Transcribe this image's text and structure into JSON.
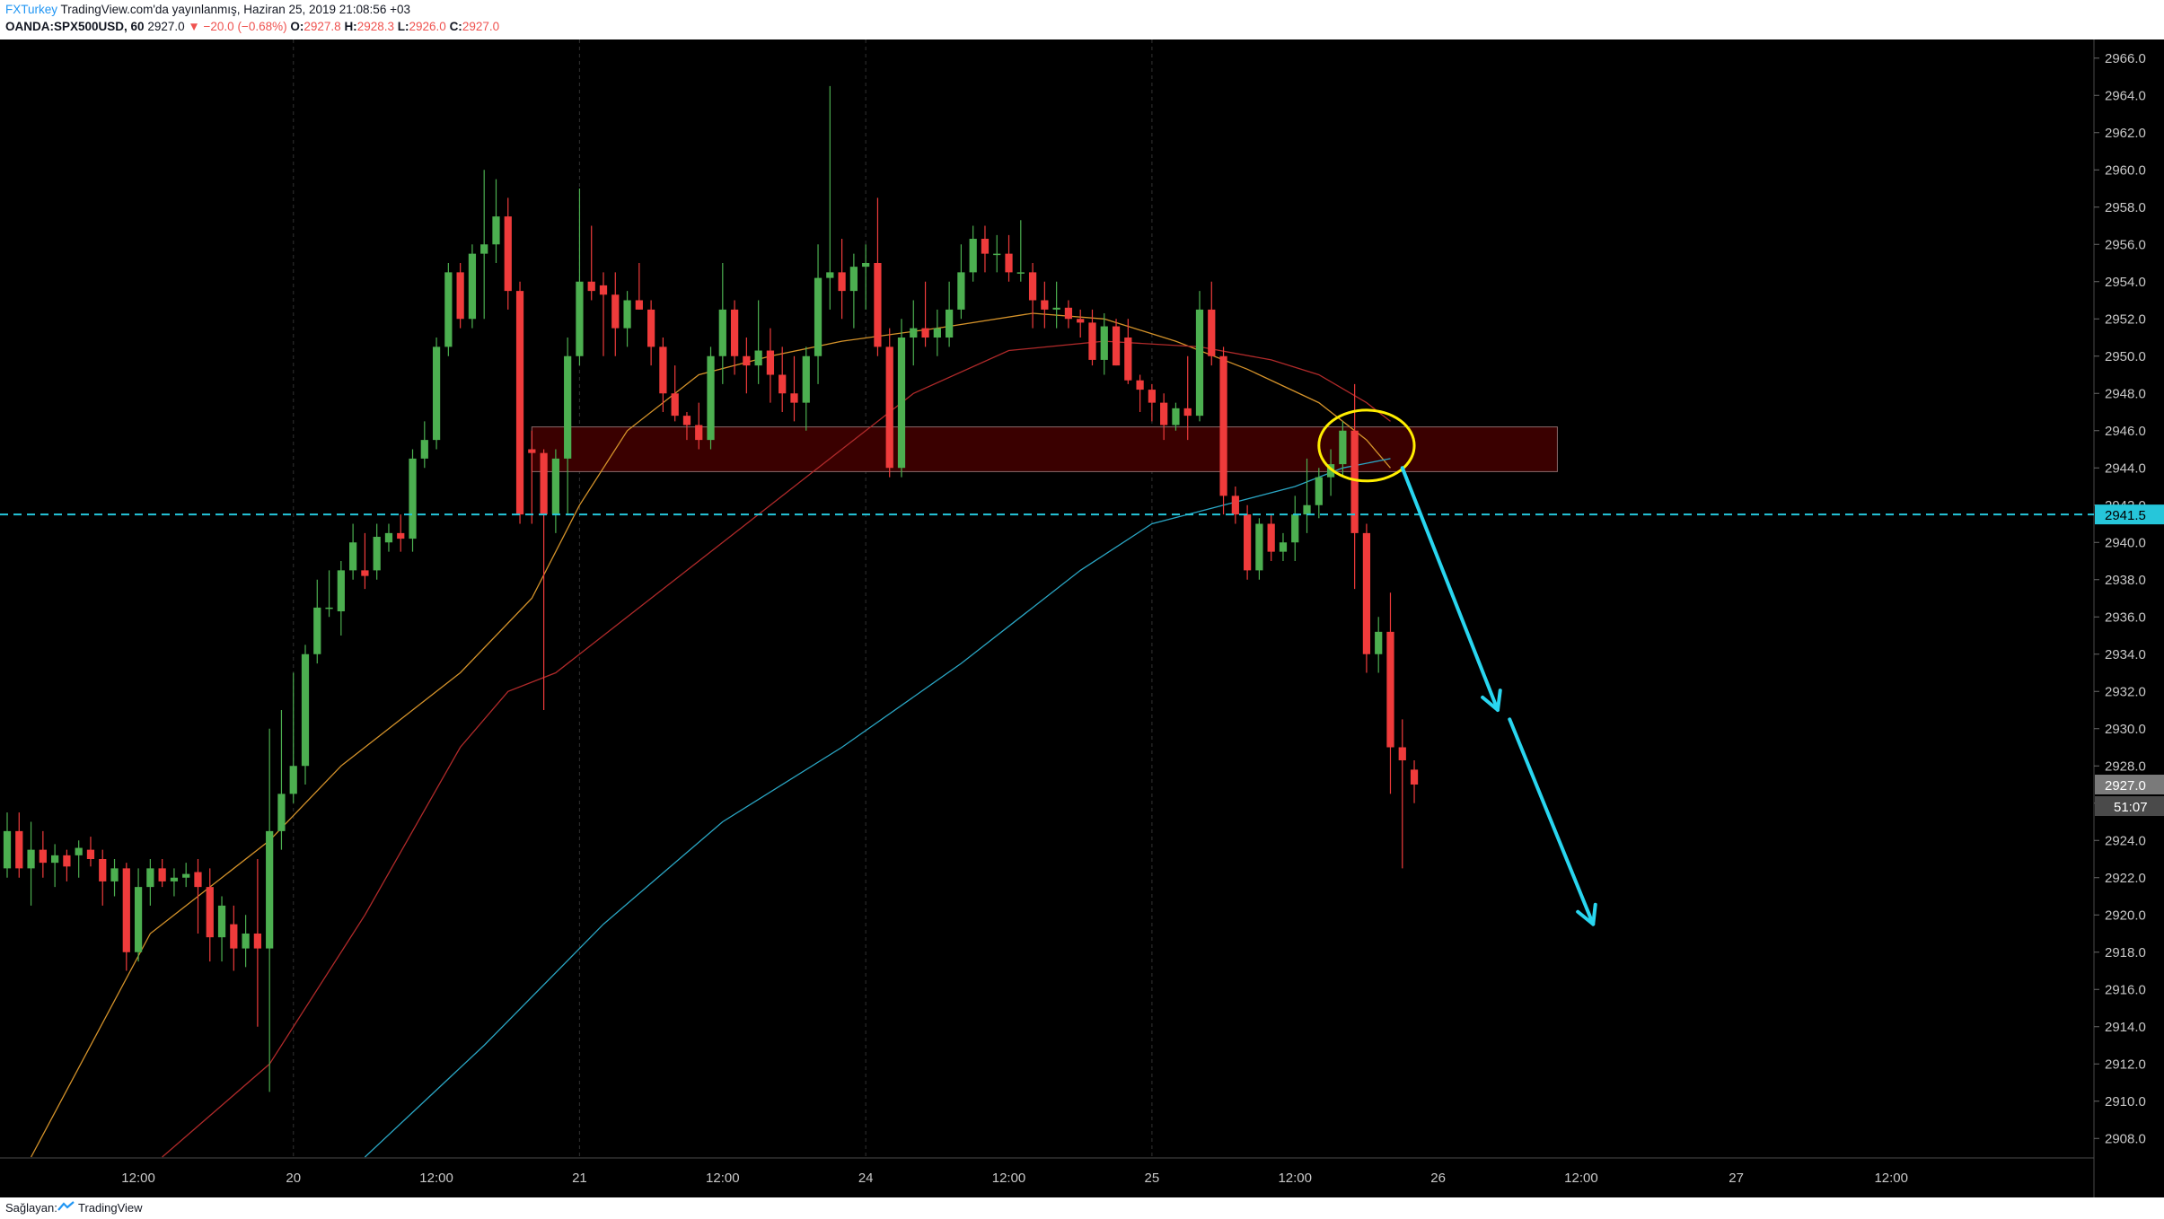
{
  "header": {
    "author": "FXTurkey",
    "published": "TradingView.com'da yayınlanmış, Haziran 25, 2019 21:08:56 +03",
    "symbol": "OANDA:SPX500USD, 60",
    "last": "2927.0",
    "change": "−20.0 (−0.68%)",
    "o_label": "O:",
    "o_value": "2927.8",
    "h_label": "H:",
    "h_value": "2928.3",
    "l_label": "L:",
    "l_value": "2926.0",
    "c_label": "C:",
    "c_value": "2927.0"
  },
  "footer": {
    "provided_by": "Sağlayan:",
    "brand": "TradingView"
  },
  "colors": {
    "background": "#000000",
    "up": "#4caf50",
    "down": "#ef3b3b",
    "ma_fast": "#d4922a",
    "ma_mid": "#b02a2a",
    "ma_slow": "#2aa6c4",
    "zone_fill": "#3a0000",
    "annotation_arrow": "#29d6f0",
    "annotation_ellipse": "#ffee00",
    "level_line": "#26c6da"
  },
  "chart_data": {
    "type": "candlestick",
    "symbol": "OANDA:SPX500USD",
    "interval": "60",
    "ylim": [
      2907,
      2967
    ],
    "y_ticks": [
      2908,
      2910,
      2912,
      2914,
      2916,
      2918,
      2920,
      2922,
      2924,
      2926,
      2928,
      2930,
      2932,
      2934,
      2936,
      2938,
      2940,
      2942,
      2944,
      2946,
      2948,
      2950,
      2952,
      2954,
      2956,
      2958,
      2960,
      2962,
      2964,
      2966
    ],
    "y_tick_labels": [
      "2908.0",
      "2910.0",
      "2912.0",
      "2914.0",
      "2916.0",
      "2918.0",
      "2920.0",
      "2922.0",
      "2924.0",
      "2926.0",
      "2928.0",
      "2930.0",
      "2932.0",
      "2934.0",
      "2936.0",
      "2938.0",
      "2940.0",
      "2942.0",
      "2944.0",
      "2946.0",
      "2948.0",
      "2950.0",
      "2952.0",
      "2954.0",
      "2956.0",
      "2958.0",
      "2960.0",
      "2962.0",
      "2964.0",
      "2966.0"
    ],
    "x_range": [
      0,
      175
    ],
    "x_ticks": [
      {
        "t": 11,
        "label": "12:00"
      },
      {
        "t": 24,
        "label": "20"
      },
      {
        "t": 36,
        "label": "12:00"
      },
      {
        "t": 48,
        "label": "21"
      },
      {
        "t": 60,
        "label": "12:00"
      },
      {
        "t": 72,
        "label": "24"
      },
      {
        "t": 84,
        "label": "12:00"
      },
      {
        "t": 96,
        "label": "25"
      },
      {
        "t": 108,
        "label": "12:00"
      },
      {
        "t": 120,
        "label": "26"
      },
      {
        "t": 132,
        "label": "12:00"
      },
      {
        "t": 145,
        "label": "27"
      },
      {
        "t": 158,
        "label": "12:00"
      }
    ],
    "candles": [
      {
        "t": 0,
        "o": 2922.5,
        "h": 2925.5,
        "l": 2922,
        "c": 2924.5
      },
      {
        "t": 1,
        "o": 2924.5,
        "h": 2925.5,
        "l": 2922,
        "c": 2922.5
      },
      {
        "t": 2,
        "o": 2922.5,
        "h": 2925,
        "l": 2920.5,
        "c": 2923.5
      },
      {
        "t": 3,
        "o": 2923.5,
        "h": 2924.5,
        "l": 2922,
        "c": 2922.8
      },
      {
        "t": 4,
        "o": 2922.8,
        "h": 2923.8,
        "l": 2921.5,
        "c": 2923.2
      },
      {
        "t": 5,
        "o": 2923.2,
        "h": 2923.5,
        "l": 2921.8,
        "c": 2922.6
      },
      {
        "t": 6,
        "o": 2923.2,
        "h": 2924,
        "l": 2922,
        "c": 2923.6
      },
      {
        "t": 7,
        "o": 2923.5,
        "h": 2924.2,
        "l": 2922.6,
        "c": 2923
      },
      {
        "t": 8,
        "o": 2923,
        "h": 2923.5,
        "l": 2920.5,
        "c": 2921.8
      },
      {
        "t": 9,
        "o": 2921.8,
        "h": 2923,
        "l": 2921,
        "c": 2922.5
      },
      {
        "t": 10,
        "o": 2922.5,
        "h": 2922.8,
        "l": 2917,
        "c": 2918
      },
      {
        "t": 11,
        "o": 2918,
        "h": 2922.5,
        "l": 2917.5,
        "c": 2921.5
      },
      {
        "t": 12,
        "o": 2921.5,
        "h": 2923,
        "l": 2920.5,
        "c": 2922.5
      },
      {
        "t": 13,
        "o": 2922.5,
        "h": 2923,
        "l": 2921.5,
        "c": 2921.8
      },
      {
        "t": 14,
        "o": 2921.8,
        "h": 2922.5,
        "l": 2921,
        "c": 2922
      },
      {
        "t": 15,
        "o": 2922,
        "h": 2922.8,
        "l": 2921.5,
        "c": 2922.2
      },
      {
        "t": 16,
        "o": 2922.3,
        "h": 2923,
        "l": 2919,
        "c": 2921.5
      },
      {
        "t": 17,
        "o": 2921.5,
        "h": 2922.5,
        "l": 2917.5,
        "c": 2918.8
      },
      {
        "t": 18,
        "o": 2918.8,
        "h": 2921,
        "l": 2917.5,
        "c": 2920.5
      },
      {
        "t": 19,
        "o": 2919.5,
        "h": 2920.5,
        "l": 2917,
        "c": 2918.2
      },
      {
        "t": 20,
        "o": 2918.2,
        "h": 2920,
        "l": 2917.2,
        "c": 2919
      },
      {
        "t": 21,
        "o": 2919,
        "h": 2923,
        "l": 2914,
        "c": 2918.2
      },
      {
        "t": 22,
        "o": 2918.2,
        "h": 2930,
        "l": 2910.5,
        "c": 2924.5
      },
      {
        "t": 23,
        "o": 2924.5,
        "h": 2931,
        "l": 2923.5,
        "c": 2926.5
      },
      {
        "t": 24,
        "o": 2926.5,
        "h": 2933,
        "l": 2926,
        "c": 2928
      },
      {
        "t": 25,
        "o": 2928,
        "h": 2934.5,
        "l": 2927,
        "c": 2934
      },
      {
        "t": 26,
        "o": 2934,
        "h": 2938,
        "l": 2933.5,
        "c": 2936.5
      },
      {
        "t": 27,
        "o": 2936.5,
        "h": 2938.5,
        "l": 2936,
        "c": 2936.5
      },
      {
        "t": 28,
        "o": 2936.3,
        "h": 2939,
        "l": 2935,
        "c": 2938.5
      },
      {
        "t": 29,
        "o": 2938.5,
        "h": 2941,
        "l": 2938,
        "c": 2940
      },
      {
        "t": 30,
        "o": 2938.5,
        "h": 2940.5,
        "l": 2937.5,
        "c": 2938.2
      },
      {
        "t": 31,
        "o": 2938.5,
        "h": 2941,
        "l": 2938,
        "c": 2940.3
      },
      {
        "t": 32,
        "o": 2940,
        "h": 2941,
        "l": 2939.5,
        "c": 2940.5
      },
      {
        "t": 33,
        "o": 2940.5,
        "h": 2941.5,
        "l": 2939.5,
        "c": 2940.2
      },
      {
        "t": 34,
        "o": 2940.2,
        "h": 2945,
        "l": 2939.5,
        "c": 2944.5
      },
      {
        "t": 35,
        "o": 2944.5,
        "h": 2946.5,
        "l": 2944,
        "c": 2945.5
      },
      {
        "t": 36,
        "o": 2945.5,
        "h": 2951,
        "l": 2945,
        "c": 2950.5
      },
      {
        "t": 37,
        "o": 2950.5,
        "h": 2955,
        "l": 2950,
        "c": 2954.5
      },
      {
        "t": 38,
        "o": 2954.5,
        "h": 2955,
        "l": 2951.5,
        "c": 2952
      },
      {
        "t": 39,
        "o": 2952,
        "h": 2956,
        "l": 2951.5,
        "c": 2955.5
      },
      {
        "t": 40,
        "o": 2955.5,
        "h": 2960,
        "l": 2952,
        "c": 2956
      },
      {
        "t": 41,
        "o": 2956,
        "h": 2959.5,
        "l": 2955,
        "c": 2957.5
      },
      {
        "t": 42,
        "o": 2957.5,
        "h": 2958.5,
        "l": 2952.5,
        "c": 2953.5
      },
      {
        "t": 43,
        "o": 2953.5,
        "h": 2954,
        "l": 2941,
        "c": 2941.5
      },
      {
        "t": 44,
        "o": 2945,
        "h": 2946,
        "l": 2941,
        "c": 2944.8
      },
      {
        "t": 45,
        "o": 2944.8,
        "h": 2945,
        "l": 2931,
        "c": 2941.5
      },
      {
        "t": 46,
        "o": 2941.5,
        "h": 2945,
        "l": 2940.5,
        "c": 2944.5
      },
      {
        "t": 47,
        "o": 2944.5,
        "h": 2951,
        "l": 2941.5,
        "c": 2950
      },
      {
        "t": 48,
        "o": 2950,
        "h": 2959,
        "l": 2949.5,
        "c": 2954
      },
      {
        "t": 49,
        "o": 2954,
        "h": 2957,
        "l": 2953,
        "c": 2953.5
      },
      {
        "t": 50,
        "o": 2953.8,
        "h": 2954.5,
        "l": 2950,
        "c": 2953.3
      },
      {
        "t": 51,
        "o": 2953.3,
        "h": 2954.5,
        "l": 2950,
        "c": 2951.5
      },
      {
        "t": 52,
        "o": 2951.5,
        "h": 2953.5,
        "l": 2950.5,
        "c": 2953
      },
      {
        "t": 53,
        "o": 2953,
        "h": 2955,
        "l": 2952.5,
        "c": 2952.5
      },
      {
        "t": 54,
        "o": 2952.5,
        "h": 2953,
        "l": 2949.5,
        "c": 2950.5
      },
      {
        "t": 55,
        "o": 2950.5,
        "h": 2951,
        "l": 2947,
        "c": 2948
      },
      {
        "t": 56,
        "o": 2948,
        "h": 2949.5,
        "l": 2946.5,
        "c": 2946.8
      },
      {
        "t": 57,
        "o": 2946.8,
        "h": 2947,
        "l": 2945.5,
        "c": 2946.3
      },
      {
        "t": 58,
        "o": 2946.3,
        "h": 2947.5,
        "l": 2945,
        "c": 2945.5
      },
      {
        "t": 59,
        "o": 2945.5,
        "h": 2950.5,
        "l": 2945,
        "c": 2950
      },
      {
        "t": 60,
        "o": 2950,
        "h": 2955,
        "l": 2948.5,
        "c": 2952.5
      },
      {
        "t": 61,
        "o": 2952.5,
        "h": 2953,
        "l": 2949,
        "c": 2950
      },
      {
        "t": 62,
        "o": 2950,
        "h": 2951,
        "l": 2948,
        "c": 2949.5
      },
      {
        "t": 63,
        "o": 2949.5,
        "h": 2953,
        "l": 2948.5,
        "c": 2950.3
      },
      {
        "t": 64,
        "o": 2950.3,
        "h": 2951.5,
        "l": 2947.5,
        "c": 2949
      },
      {
        "t": 65,
        "o": 2949,
        "h": 2950.5,
        "l": 2947,
        "c": 2948
      },
      {
        "t": 66,
        "o": 2948,
        "h": 2950,
        "l": 2946.5,
        "c": 2947.5
      },
      {
        "t": 67,
        "o": 2947.5,
        "h": 2950.5,
        "l": 2946,
        "c": 2950
      },
      {
        "t": 68,
        "o": 2950,
        "h": 2956,
        "l": 2948.5,
        "c": 2954.2
      },
      {
        "t": 69,
        "o": 2954.2,
        "h": 2964.5,
        "l": 2952.5,
        "c": 2954.5
      },
      {
        "t": 70,
        "o": 2954.5,
        "h": 2956.3,
        "l": 2952,
        "c": 2953.5
      },
      {
        "t": 71,
        "o": 2953.5,
        "h": 2955.5,
        "l": 2951.5,
        "c": 2954.8
      },
      {
        "t": 72,
        "o": 2954.8,
        "h": 2956,
        "l": 2952.5,
        "c": 2955
      },
      {
        "t": 73,
        "o": 2955,
        "h": 2958.5,
        "l": 2950,
        "c": 2950.5
      },
      {
        "t": 74,
        "o": 2950.5,
        "h": 2951.5,
        "l": 2943.5,
        "c": 2944
      },
      {
        "t": 75,
        "o": 2944,
        "h": 2952,
        "l": 2943.5,
        "c": 2951
      },
      {
        "t": 76,
        "o": 2951,
        "h": 2953,
        "l": 2949.5,
        "c": 2951.5
      },
      {
        "t": 77,
        "o": 2951.5,
        "h": 2954,
        "l": 2950.5,
        "c": 2951
      },
      {
        "t": 78,
        "o": 2951,
        "h": 2952.5,
        "l": 2950,
        "c": 2951.5
      },
      {
        "t": 79,
        "o": 2951,
        "h": 2954,
        "l": 2950.5,
        "c": 2952.5
      },
      {
        "t": 80,
        "o": 2952.5,
        "h": 2956,
        "l": 2952,
        "c": 2954.5
      },
      {
        "t": 81,
        "o": 2954.5,
        "h": 2957,
        "l": 2954,
        "c": 2956.3
      },
      {
        "t": 82,
        "o": 2956.3,
        "h": 2957,
        "l": 2954.5,
        "c": 2955.5
      },
      {
        "t": 83,
        "o": 2955.5,
        "h": 2956.5,
        "l": 2954.5,
        "c": 2955.5
      },
      {
        "t": 84,
        "o": 2955.5,
        "h": 2956.5,
        "l": 2954,
        "c": 2954.5
      },
      {
        "t": 85,
        "o": 2954.5,
        "h": 2957.3,
        "l": 2954,
        "c": 2954.5
      },
      {
        "t": 86,
        "o": 2954.5,
        "h": 2955,
        "l": 2951.5,
        "c": 2953
      },
      {
        "t": 87,
        "o": 2953,
        "h": 2954,
        "l": 2951.5,
        "c": 2952.5
      },
      {
        "t": 88,
        "o": 2952.5,
        "h": 2954,
        "l": 2951.5,
        "c": 2952.6
      },
      {
        "t": 89,
        "o": 2952.6,
        "h": 2953,
        "l": 2951.5,
        "c": 2952
      },
      {
        "t": 90,
        "o": 2952,
        "h": 2952.5,
        "l": 2951,
        "c": 2951.8
      },
      {
        "t": 91,
        "o": 2951.8,
        "h": 2952.5,
        "l": 2949.5,
        "c": 2949.8
      },
      {
        "t": 92,
        "o": 2949.8,
        "h": 2952.3,
        "l": 2949,
        "c": 2951.6
      },
      {
        "t": 93,
        "o": 2951.6,
        "h": 2952,
        "l": 2949.5,
        "c": 2949.5
      },
      {
        "t": 94,
        "o": 2951,
        "h": 2952,
        "l": 2948.5,
        "c": 2948.7
      },
      {
        "t": 95,
        "o": 2948.7,
        "h": 2949,
        "l": 2947,
        "c": 2948.2
      },
      {
        "t": 96,
        "o": 2948.2,
        "h": 2948.5,
        "l": 2946.5,
        "c": 2947.5
      },
      {
        "t": 97,
        "o": 2947.5,
        "h": 2948,
        "l": 2945.5,
        "c": 2946.3
      },
      {
        "t": 98,
        "o": 2946.3,
        "h": 2947.5,
        "l": 2946,
        "c": 2947.2
      },
      {
        "t": 99,
        "o": 2947.2,
        "h": 2950,
        "l": 2945.5,
        "c": 2946.8
      },
      {
        "t": 100,
        "o": 2946.8,
        "h": 2953.5,
        "l": 2946.5,
        "c": 2952.5
      },
      {
        "t": 101,
        "o": 2952.5,
        "h": 2954,
        "l": 2949.5,
        "c": 2950
      },
      {
        "t": 102,
        "o": 2950,
        "h": 2950.5,
        "l": 2941.5,
        "c": 2942.5
      },
      {
        "t": 103,
        "o": 2942.5,
        "h": 2943,
        "l": 2941,
        "c": 2941.5
      },
      {
        "t": 104,
        "o": 2941.5,
        "h": 2942,
        "l": 2938,
        "c": 2938.5
      },
      {
        "t": 105,
        "o": 2938.5,
        "h": 2941.3,
        "l": 2938,
        "c": 2941
      },
      {
        "t": 106,
        "o": 2941,
        "h": 2941.5,
        "l": 2939,
        "c": 2939.5
      },
      {
        "t": 107,
        "o": 2939.5,
        "h": 2940.5,
        "l": 2939,
        "c": 2940
      },
      {
        "t": 108,
        "o": 2940,
        "h": 2942.5,
        "l": 2939,
        "c": 2941.5
      },
      {
        "t": 109,
        "o": 2941.5,
        "h": 2944.5,
        "l": 2940.5,
        "c": 2942
      },
      {
        "t": 110,
        "o": 2942,
        "h": 2944,
        "l": 2941.3,
        "c": 2943.5
      },
      {
        "t": 111,
        "o": 2943.5,
        "h": 2945,
        "l": 2942.5,
        "c": 2944.2
      },
      {
        "t": 112,
        "o": 2944.2,
        "h": 2946.5,
        "l": 2943.5,
        "c": 2946
      },
      {
        "t": 113,
        "o": 2946,
        "h": 2948.5,
        "l": 2937.5,
        "c": 2940.5
      },
      {
        "t": 114,
        "o": 2940.5,
        "h": 2941,
        "l": 2933,
        "c": 2934
      },
      {
        "t": 115,
        "o": 2934,
        "h": 2936,
        "l": 2933,
        "c": 2935.2
      },
      {
        "t": 116,
        "o": 2935.2,
        "h": 2937.3,
        "l": 2926.5,
        "c": 2929
      },
      {
        "t": 117,
        "o": 2929,
        "h": 2930.5,
        "l": 2922.5,
        "c": 2928.3
      },
      {
        "t": 118,
        "o": 2927.8,
        "h": 2928.3,
        "l": 2926,
        "c": 2927
      }
    ],
    "moving_averages": [
      {
        "color_key": "ma_fast",
        "points": [
          [
            2,
            2907
          ],
          [
            12,
            2919
          ],
          [
            22,
            2924
          ],
          [
            28,
            2928
          ],
          [
            38,
            2933
          ],
          [
            44,
            2937
          ],
          [
            48,
            2942
          ],
          [
            52,
            2946
          ],
          [
            58,
            2949
          ],
          [
            64,
            2950
          ],
          [
            70,
            2950.8
          ],
          [
            78,
            2951.5
          ],
          [
            86,
            2952.3
          ],
          [
            92,
            2952
          ],
          [
            98,
            2950.8
          ],
          [
            104,
            2949.3
          ],
          [
            110,
            2947.5
          ],
          [
            114,
            2945.5
          ],
          [
            116,
            2944
          ]
        ]
      },
      {
        "color_key": "ma_mid",
        "points": [
          [
            13,
            2907
          ],
          [
            22,
            2912
          ],
          [
            30,
            2920
          ],
          [
            38,
            2929
          ],
          [
            42,
            2932
          ],
          [
            46,
            2933
          ],
          [
            54,
            2937
          ],
          [
            62,
            2941
          ],
          [
            70,
            2945
          ],
          [
            76,
            2948
          ],
          [
            84,
            2950.3
          ],
          [
            92,
            2950.8
          ],
          [
            100,
            2950.5
          ],
          [
            106,
            2949.8
          ],
          [
            110,
            2949
          ],
          [
            114,
            2947.5
          ],
          [
            116,
            2946.5
          ]
        ]
      },
      {
        "color_key": "ma_slow",
        "points": [
          [
            30,
            2907
          ],
          [
            40,
            2913
          ],
          [
            50,
            2919.5
          ],
          [
            60,
            2925
          ],
          [
            70,
            2929
          ],
          [
            80,
            2933.5
          ],
          [
            90,
            2938.5
          ],
          [
            96,
            2941
          ],
          [
            102,
            2942
          ],
          [
            108,
            2943
          ],
          [
            112,
            2944
          ],
          [
            116,
            2944.5
          ]
        ]
      }
    ],
    "zone": {
      "t_start": 44,
      "t_end": 130,
      "y_low": 2943.8,
      "y_high": 2946.2
    },
    "level": 2941.5,
    "level_label": "2941.5",
    "price_label": "2927.0",
    "countdown_label": "51:07",
    "ellipse": {
      "t": 114,
      "y": 2945.2,
      "rt": 4,
      "ry": 1.9
    },
    "arrows": [
      {
        "t1": 117,
        "y1": 2944,
        "t2": 125,
        "y2": 2931
      },
      {
        "t1": 126,
        "y1": 2930.5,
        "t2": 133,
        "y2": 2919.5
      }
    ]
  }
}
